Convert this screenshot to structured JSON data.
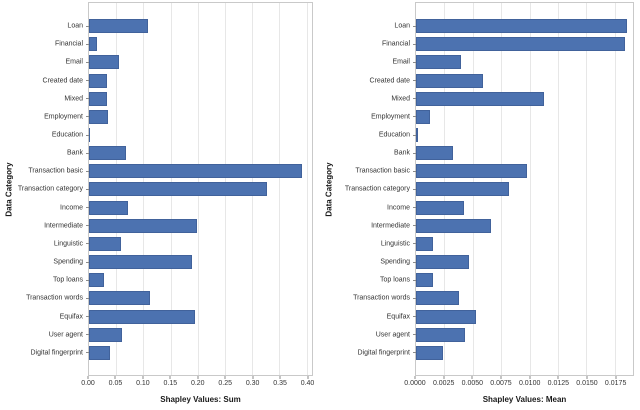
{
  "figure": {
    "background_color": "#ffffff",
    "bar_color": "#4c72b0",
    "gridline_color": "#e7e7e7",
    "spine_color": "#c9c9c9"
  },
  "chart_data": [
    {
      "type": "bar",
      "orientation": "horizontal",
      "title": "",
      "xlabel": "Shapley Values: Sum",
      "ylabel": "Data Category",
      "categories": [
        "Loan",
        "Financial",
        "Email",
        "Created date",
        "Mixed",
        "Employment",
        "Education",
        "Bank",
        "Transaction basic",
        "Transaction category",
        "Income",
        "Intermediate",
        "Linguistic",
        "Spending",
        "Top loans",
        "Transaction words",
        "Equifax",
        "User agent",
        "Digital fingerprint"
      ],
      "values": [
        0.109,
        0.015,
        0.055,
        0.034,
        0.033,
        0.035,
        0.001,
        0.068,
        0.391,
        0.328,
        0.071,
        0.198,
        0.059,
        0.189,
        0.028,
        0.113,
        0.194,
        0.06,
        0.038
      ],
      "xticks": [
        0.0,
        0.05,
        0.1,
        0.15,
        0.2,
        0.25,
        0.3,
        0.35,
        0.4
      ],
      "xtick_labels": [
        "0.00",
        "0.05",
        "0.10",
        "0.15",
        "0.20",
        "0.25",
        "0.30",
        "0.35",
        "0.40"
      ],
      "xlim": [
        0,
        0.41
      ],
      "grid": true,
      "legend": false,
      "bar_color": "#4c72b0"
    },
    {
      "type": "bar",
      "orientation": "horizontal",
      "title": "",
      "xlabel": "Shapley Values: Mean",
      "ylabel": "Data Category",
      "categories": [
        "Loan",
        "Financial",
        "Email",
        "Created date",
        "Mixed",
        "Employment",
        "Education",
        "Bank",
        "Transaction basic",
        "Transaction category",
        "Income",
        "Intermediate",
        "Linguistic",
        "Spending",
        "Top loans",
        "Transaction words",
        "Equifax",
        "User agent",
        "Digital fingerprint"
      ],
      "values": [
        0.0186,
        0.0184,
        0.004,
        0.0059,
        0.0113,
        0.0012,
        0.0002,
        0.0033,
        0.0098,
        0.0082,
        0.0042,
        0.0066,
        0.0015,
        0.0047,
        0.0015,
        0.0038,
        0.0053,
        0.0043,
        0.0024
      ],
      "xticks": [
        0.0,
        0.0025,
        0.005,
        0.0075,
        0.01,
        0.0125,
        0.015,
        0.0175
      ],
      "xtick_labels": [
        "0.0000",
        "0.0025",
        "0.0050",
        "0.0075",
        "0.0100",
        "0.0125",
        "0.0150",
        "0.0175"
      ],
      "xlim": [
        0,
        0.0191
      ],
      "grid": true,
      "legend": false,
      "bar_color": "#4c72b0"
    }
  ]
}
